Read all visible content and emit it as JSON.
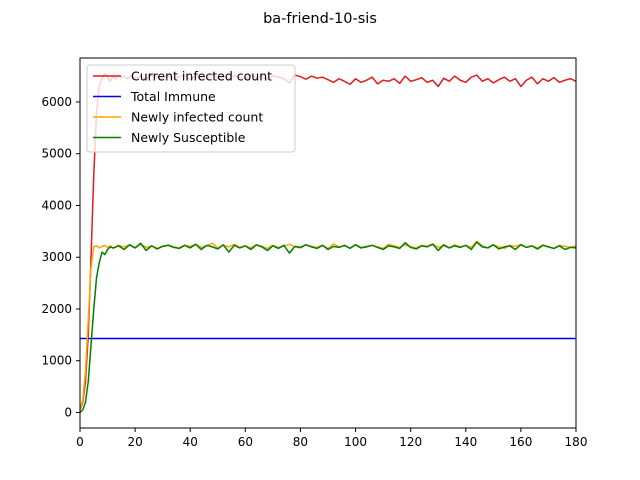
{
  "chart_data": {
    "type": "line",
    "title": "ba-friend-10-sis",
    "xlabel": "",
    "ylabel": "",
    "xlim": [
      0,
      180
    ],
    "ylim": [
      -300,
      6850
    ],
    "x_ticks": [
      0,
      20,
      40,
      60,
      80,
      100,
      120,
      140,
      160,
      180
    ],
    "y_ticks": [
      0,
      1000,
      2000,
      3000,
      4000,
      5000,
      6000
    ],
    "grid": false,
    "legend_position": "top-left",
    "series": [
      {
        "name": "Current infected count",
        "color": "#e31a1c",
        "x": [
          0,
          1,
          2,
          3,
          4,
          5,
          6,
          7,
          8,
          9,
          10,
          11,
          12,
          13,
          14,
          15,
          16,
          17,
          18,
          19,
          20,
          22,
          24,
          26,
          28,
          30,
          32,
          34,
          36,
          38,
          40,
          42,
          44,
          46,
          48,
          50,
          52,
          54,
          56,
          58,
          60,
          62,
          64,
          66,
          68,
          70,
          72,
          74,
          76,
          78,
          80,
          82,
          84,
          86,
          88,
          90,
          92,
          94,
          96,
          98,
          100,
          102,
          104,
          106,
          108,
          110,
          112,
          114,
          116,
          118,
          120,
          122,
          124,
          126,
          128,
          130,
          132,
          134,
          136,
          138,
          140,
          142,
          144,
          146,
          148,
          150,
          152,
          154,
          156,
          158,
          160,
          162,
          164,
          166,
          168,
          170,
          172,
          174,
          176,
          178,
          180
        ],
        "values": [
          50,
          200,
          600,
          1500,
          3000,
          4600,
          5800,
          6300,
          6450,
          6550,
          6480,
          6400,
          6500,
          6450,
          6520,
          6480,
          6500,
          6450,
          6480,
          6520,
          6450,
          6500,
          6450,
          6520,
          6480,
          6460,
          6510,
          6450,
          6490,
          6520,
          6440,
          6500,
          6480,
          6450,
          6530,
          6470,
          6500,
          6440,
          6510,
          6480,
          6450,
          6520,
          6470,
          6500,
          6430,
          6510,
          6480,
          6450,
          6370,
          6520,
          6490,
          6440,
          6500,
          6460,
          6480,
          6430,
          6380,
          6450,
          6400,
          6340,
          6450,
          6380,
          6420,
          6480,
          6350,
          6420,
          6400,
          6450,
          6360,
          6500,
          6400,
          6430,
          6470,
          6380,
          6420,
          6300,
          6460,
          6400,
          6500,
          6420,
          6380,
          6480,
          6520,
          6400,
          6450,
          6370,
          6430,
          6480,
          6400,
          6450,
          6300,
          6420,
          6480,
          6350,
          6450,
          6400,
          6470,
          6380,
          6420,
          6450,
          6400
        ]
      },
      {
        "name": "Total Immune",
        "color": "#0000ff",
        "x": [
          0,
          180
        ],
        "values": [
          1430,
          1430
        ]
      },
      {
        "name": "Newly infected count",
        "color": "#ffa500",
        "x": [
          0,
          1,
          2,
          3,
          4,
          5,
          6,
          7,
          8,
          9,
          10,
          11,
          12,
          14,
          16,
          18,
          20,
          22,
          24,
          26,
          28,
          30,
          32,
          34,
          36,
          38,
          40,
          42,
          44,
          46,
          48,
          50,
          52,
          54,
          56,
          58,
          60,
          62,
          64,
          66,
          68,
          70,
          72,
          74,
          76,
          78,
          80,
          82,
          84,
          86,
          88,
          90,
          92,
          94,
          96,
          98,
          100,
          102,
          104,
          106,
          108,
          110,
          112,
          114,
          116,
          118,
          120,
          122,
          124,
          126,
          128,
          130,
          132,
          134,
          136,
          138,
          140,
          142,
          144,
          146,
          148,
          150,
          152,
          154,
          156,
          158,
          160,
          162,
          164,
          166,
          168,
          170,
          172,
          174,
          176,
          178,
          180
        ],
        "values": [
          50,
          250,
          800,
          1800,
          2800,
          3200,
          3220,
          3180,
          3210,
          3230,
          3190,
          3220,
          3170,
          3230,
          3200,
          3240,
          3180,
          3250,
          3190,
          3220,
          3170,
          3210,
          3240,
          3200,
          3180,
          3230,
          3210,
          3250,
          3190,
          3220,
          3270,
          3180,
          3230,
          3200,
          3250,
          3190,
          3220,
          3180,
          3240,
          3210,
          3170,
          3230,
          3190,
          3220,
          3250,
          3200,
          3180,
          3240,
          3210,
          3190,
          3230,
          3170,
          3260,
          3200,
          3220,
          3180,
          3240,
          3190,
          3210,
          3230,
          3200,
          3170,
          3250,
          3220,
          3190,
          3240,
          3200,
          3180,
          3230,
          3210,
          3260,
          3190,
          3220,
          3180,
          3240,
          3200,
          3230,
          3190,
          3310,
          3220,
          3180,
          3240,
          3200,
          3170,
          3230,
          3210,
          3250,
          3190,
          3220,
          3180,
          3240,
          3200,
          3170,
          3230,
          3210,
          3190,
          3220
        ]
      },
      {
        "name": "Newly Susceptible",
        "color": "#008000",
        "x": [
          0,
          1,
          2,
          3,
          4,
          5,
          6,
          7,
          8,
          9,
          10,
          11,
          12,
          14,
          16,
          18,
          20,
          22,
          24,
          26,
          28,
          30,
          32,
          34,
          36,
          38,
          40,
          42,
          44,
          46,
          48,
          50,
          52,
          54,
          56,
          58,
          60,
          62,
          64,
          66,
          68,
          70,
          72,
          74,
          76,
          78,
          80,
          82,
          84,
          86,
          88,
          90,
          92,
          94,
          96,
          98,
          100,
          102,
          104,
          106,
          108,
          110,
          112,
          114,
          116,
          118,
          120,
          122,
          124,
          126,
          128,
          130,
          132,
          134,
          136,
          138,
          140,
          142,
          144,
          146,
          148,
          150,
          152,
          154,
          156,
          158,
          160,
          162,
          164,
          166,
          168,
          170,
          172,
          174,
          176,
          178,
          180
        ],
        "values": [
          0,
          50,
          200,
          600,
          1300,
          2000,
          2600,
          2900,
          3100,
          3050,
          3150,
          3200,
          3180,
          3220,
          3150,
          3240,
          3180,
          3270,
          3130,
          3220,
          3160,
          3210,
          3230,
          3190,
          3170,
          3230,
          3180,
          3250,
          3150,
          3230,
          3200,
          3160,
          3240,
          3100,
          3230,
          3180,
          3220,
          3150,
          3240,
          3200,
          3130,
          3220,
          3170,
          3230,
          3080,
          3210,
          3190,
          3240,
          3200,
          3170,
          3230,
          3150,
          3210,
          3190,
          3230,
          3170,
          3240,
          3180,
          3200,
          3230,
          3190,
          3150,
          3220,
          3200,
          3170,
          3280,
          3190,
          3160,
          3220,
          3200,
          3250,
          3130,
          3240,
          3180,
          3220,
          3190,
          3230,
          3150,
          3290,
          3200,
          3180,
          3240,
          3160,
          3200,
          3220,
          3150,
          3240,
          3190,
          3220,
          3160,
          3230,
          3200,
          3170,
          3220,
          3150,
          3190,
          3180
        ]
      }
    ]
  }
}
